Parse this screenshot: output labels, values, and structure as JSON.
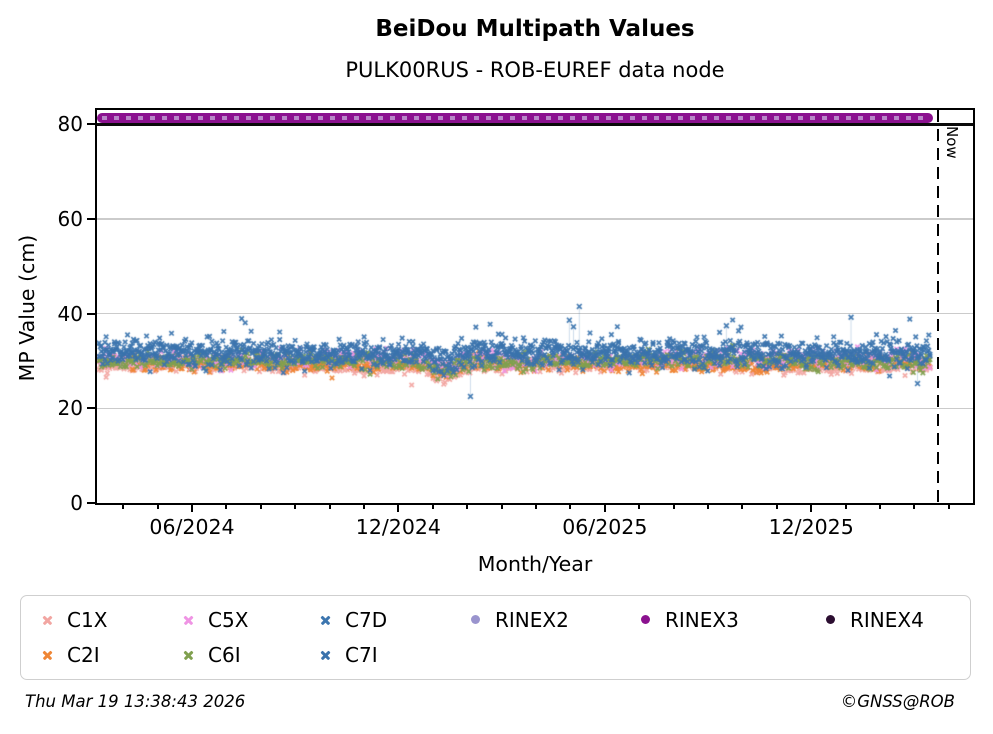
{
  "header": {
    "title": "BeiDou Multipath Values",
    "subtitle": "PULK00RUS - ROB-EUREF data node"
  },
  "footer": {
    "timestamp": "Thu Mar 19 13:38:43 2026",
    "credit": "©GNSS@ROB"
  },
  "legend": {
    "items": [
      {
        "label": "C1X",
        "marker": "x",
        "color": "#f2a6a2"
      },
      {
        "label": "C5X",
        "marker": "x",
        "color": "#ef94e4"
      },
      {
        "label": "C7D",
        "marker": "x",
        "color": "#3d76af"
      },
      {
        "label": "RINEX2",
        "marker": "circle",
        "color": "#9a94ce"
      },
      {
        "label": "RINEX3",
        "marker": "circle",
        "color": "#8b118f"
      },
      {
        "label": "RINEX4",
        "marker": "circle",
        "color": "#2c0e31"
      },
      {
        "label": "C2I",
        "marker": "x",
        "color": "#ef8636"
      },
      {
        "label": "C6I",
        "marker": "x",
        "color": "#80a04f"
      },
      {
        "label": "C7I",
        "marker": "x",
        "color": "#3a73ad"
      }
    ]
  },
  "chart_data": {
    "type": "scatter",
    "title": "BeiDou Multipath Values",
    "subtitle": "PULK00RUS - ROB-EUREF data node",
    "xlabel": "Month/Year",
    "ylabel": "MP Value (cm)",
    "ylim": [
      0,
      83
    ],
    "x_range_months": [
      "04/2024",
      "04/2026"
    ],
    "yticks": [
      0,
      20,
      40,
      60,
      80
    ],
    "xticks_major": [
      "06/2024",
      "12/2024",
      "06/2025",
      "12/2025"
    ],
    "grid": "horizontal-light-gray",
    "legend_position": "bottom",
    "now_annotation": {
      "label": "Now",
      "x": "03/2026",
      "style": "vertical-dashed-black"
    },
    "series": [
      {
        "name": "C1X",
        "type": "scatter-daily",
        "color": "#f2a6a2",
        "marker": "x",
        "mean": 28.8,
        "std": 0.7
      },
      {
        "name": "C2I",
        "type": "scatter-daily",
        "color": "#ef8636",
        "marker": "x",
        "mean": 29.4,
        "std": 0.8
      },
      {
        "name": "C5X",
        "type": "scatter-daily",
        "color": "#ef94e4",
        "marker": "x",
        "mean": 30.4,
        "std": 0.9
      },
      {
        "name": "C6I",
        "type": "scatter-daily",
        "color": "#80a04f",
        "marker": "x",
        "mean": 29.9,
        "std": 0.8
      },
      {
        "name": "C7D",
        "type": "scatter-daily",
        "color": "#3d76af",
        "marker": "x",
        "mean": 31.9,
        "std": 1.5,
        "spike_prob": 0.025
      },
      {
        "name": "C7I",
        "type": "scatter-daily",
        "color": "#3a73ad",
        "marker": "x",
        "mean": 31.4,
        "std": 1.4,
        "spike_prob": 0.02
      },
      {
        "name": "RINEX2",
        "type": "constant-line",
        "color": "#9a94ce",
        "marker": "circle",
        "value": 81.6
      },
      {
        "name": "RINEX3",
        "type": "constant-line",
        "color": "#8b118f",
        "marker": "circle",
        "value": 81.3
      },
      {
        "name": "RINEX4",
        "type": "constant-line",
        "color": "#2c0e31",
        "marker": "circle",
        "value": 80.0
      }
    ],
    "scatter_range_cm": [
      22.5,
      41.5
    ],
    "dip": {
      "t": 0.415,
      "depth": -1.9,
      "width": 0.02
    },
    "outliers": [
      {
        "series": "C7D",
        "t": 0.578,
        "value": 41.5
      },
      {
        "series": "C7D",
        "t": 0.566,
        "value": 38.6
      },
      {
        "series": "C7D",
        "t": 0.571,
        "value": 37.2
      },
      {
        "series": "C7D",
        "t": 0.447,
        "value": 22.5
      },
      {
        "series": "C7D",
        "t": 0.905,
        "value": 39.2
      },
      {
        "series": "C7D",
        "t": 0.755,
        "value": 37.4
      },
      {
        "series": "C7D",
        "t": 0.985,
        "value": 25.2
      }
    ]
  }
}
